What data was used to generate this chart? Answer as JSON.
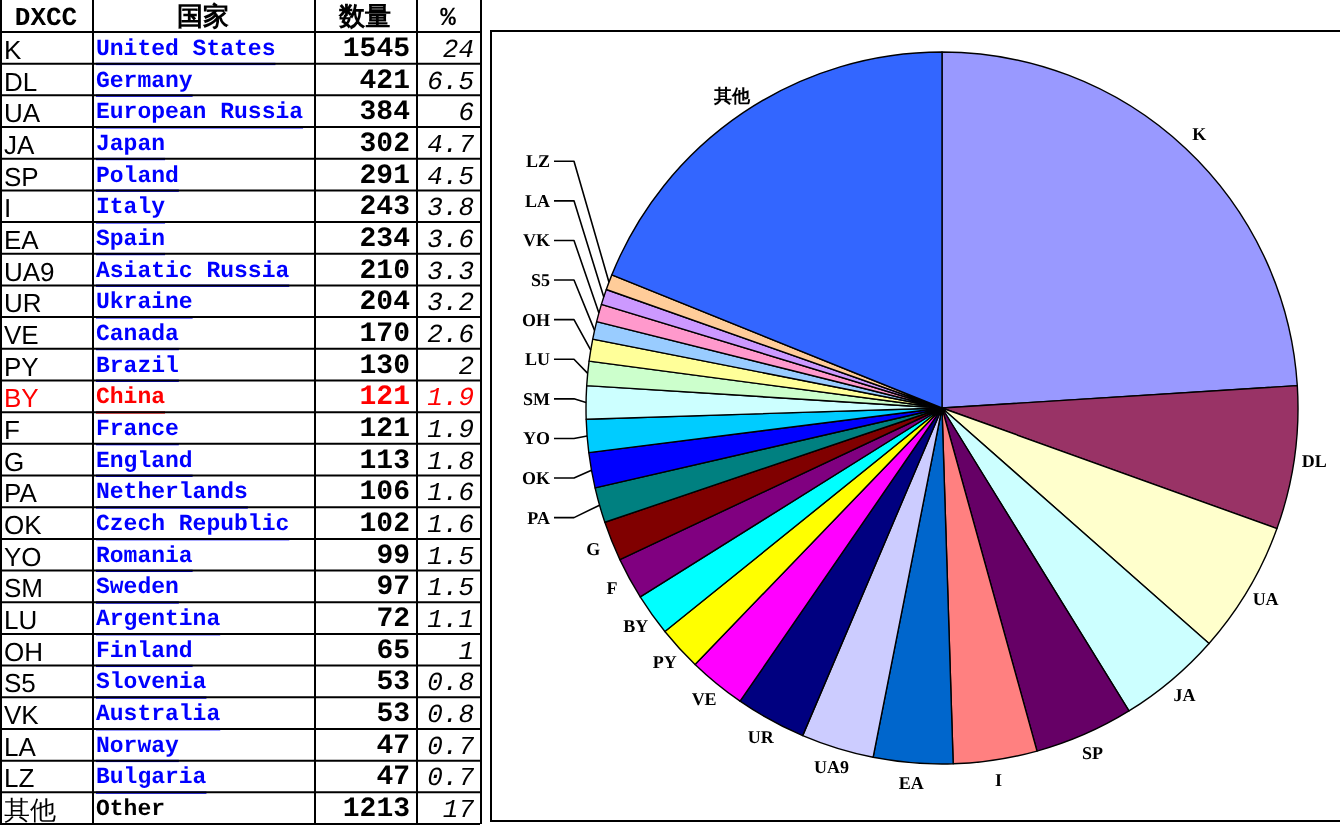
{
  "chart_data": [
    {
      "type": "other",
      "categories": [
        "DXCC",
        "国家",
        "数量",
        "%"
      ],
      "cell_labels": [
        [
          "K",
          "United States",
          "1545",
          "24"
        ],
        [
          "DL",
          "Germany",
          "421",
          "6.5"
        ],
        [
          "UA",
          "European Russia",
          "384",
          "6"
        ],
        [
          "JA",
          "Japan",
          "302",
          "4.7"
        ],
        [
          "SP",
          "Poland",
          "291",
          "4.5"
        ],
        [
          "I",
          "Italy",
          "243",
          "3.8"
        ],
        [
          "EA",
          "Spain",
          "234",
          "3.6"
        ],
        [
          "UA9",
          "Asiatic Russia",
          "210",
          "3.3"
        ],
        [
          "UR",
          "Ukraine",
          "204",
          "3.2"
        ],
        [
          "VE",
          "Canada",
          "170",
          "2.6"
        ],
        [
          "PY",
          "Brazil",
          "130",
          "2"
        ],
        [
          "BY",
          "China",
          "121",
          "1.9"
        ],
        [
          "F",
          "France",
          "121",
          "1.9"
        ],
        [
          "G",
          "England",
          "113",
          "1.8"
        ],
        [
          "PA",
          "Netherlands",
          "106",
          "1.6"
        ],
        [
          "OK",
          "Czech Republic",
          "102",
          "1.6"
        ],
        [
          "YO",
          "Romania",
          "99",
          "1.5"
        ],
        [
          "SM",
          "Sweden",
          "97",
          "1.5"
        ],
        [
          "LU",
          "Argentina",
          "72",
          "1.1"
        ],
        [
          "OH",
          "Finland",
          "65",
          "1"
        ],
        [
          "S5",
          "Slovenia",
          "53",
          "0.8"
        ],
        [
          "VK",
          "Australia",
          "53",
          "0.8"
        ],
        [
          "LA",
          "Norway",
          "47",
          "0.7"
        ],
        [
          "LZ",
          "Bulgaria",
          "47",
          "0.7"
        ],
        [
          "其他",
          "Other",
          "1213",
          "17"
        ]
      ],
      "colors": [
        [
          "#000000",
          "#0000ff",
          "#000000",
          "#000000"
        ],
        [
          "#000000",
          "#0000ff",
          "#000000",
          "#000000"
        ],
        [
          "#000000",
          "#0000ff",
          "#000000",
          "#000000"
        ],
        [
          "#000000",
          "#0000ff",
          "#000000",
          "#000000"
        ],
        [
          "#000000",
          "#0000ff",
          "#000000",
          "#000000"
        ],
        [
          "#000000",
          "#0000ff",
          "#000000",
          "#000000"
        ],
        [
          "#000000",
          "#0000ff",
          "#000000",
          "#000000"
        ],
        [
          "#000000",
          "#0000ff",
          "#000000",
          "#000000"
        ],
        [
          "#000000",
          "#0000ff",
          "#000000",
          "#000000"
        ],
        [
          "#000000",
          "#0000ff",
          "#000000",
          "#000000"
        ],
        [
          "#000000",
          "#0000ff",
          "#000000",
          "#000000"
        ],
        [
          "#ff0000",
          "#ff0000",
          "#ff0000",
          "#ff0000"
        ],
        [
          "#000000",
          "#0000ff",
          "#000000",
          "#000000"
        ],
        [
          "#000000",
          "#0000ff",
          "#000000",
          "#000000"
        ],
        [
          "#000000",
          "#0000ff",
          "#000000",
          "#000000"
        ],
        [
          "#000000",
          "#0000ff",
          "#000000",
          "#000000"
        ],
        [
          "#000000",
          "#0000ff",
          "#000000",
          "#000000"
        ],
        [
          "#000000",
          "#0000ff",
          "#000000",
          "#000000"
        ],
        [
          "#000000",
          "#0000ff",
          "#000000",
          "#000000"
        ],
        [
          "#000000",
          "#0000ff",
          "#000000",
          "#000000"
        ],
        [
          "#000000",
          "#0000ff",
          "#000000",
          "#000000"
        ],
        [
          "#000000",
          "#0000ff",
          "#000000",
          "#000000"
        ],
        [
          "#000000",
          "#0000ff",
          "#000000",
          "#000000"
        ],
        [
          "#000000",
          "#0000ff",
          "#000000",
          "#000000"
        ],
        [
          "#000000",
          "#000000",
          "#000000",
          "#000000"
        ]
      ]
    },
    {
      "type": "pie",
      "categories": [
        "K",
        "DL",
        "UA",
        "JA",
        "SP",
        "I",
        "EA",
        "UA9",
        "UR",
        "VE",
        "PY",
        "BY",
        "F",
        "G",
        "PA",
        "OK",
        "YO",
        "SM",
        "LU",
        "OH",
        "S5",
        "VK",
        "LA",
        "LZ",
        "其他"
      ],
      "values": [
        24.0,
        6.5,
        6.0,
        4.7,
        4.5,
        3.8,
        3.6,
        3.3,
        3.2,
        2.6,
        2.0,
        1.9,
        1.9,
        1.8,
        1.6,
        1.6,
        1.5,
        1.5,
        1.1,
        1.0,
        0.8,
        0.8,
        0.7,
        0.7,
        18.9
      ],
      "colors": [
        "#9999ff",
        "#993366",
        "#ffffcc",
        "#ccffff",
        "#660066",
        "#ff8080",
        "#0066cc",
        "#ccccff",
        "#000080",
        "#ff00ff",
        "#ffff00",
        "#00ffff",
        "#800080",
        "#800000",
        "#008080",
        "#0000ff",
        "#00ccff",
        "#ccffff",
        "#ccffcc",
        "#ffff99",
        "#99ccff",
        "#ff99cc",
        "#cc99ff",
        "#ffcc99",
        "#3366ff"
      ]
    }
  ]
}
